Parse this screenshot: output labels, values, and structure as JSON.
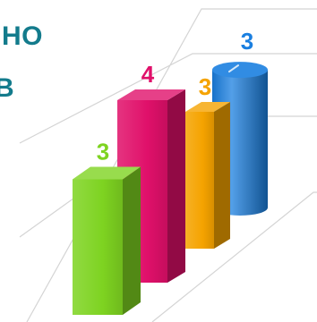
{
  "chart_data": {
    "type": "bar",
    "style": "3d-perspective",
    "categories": [
      "",
      "",
      "",
      ""
    ],
    "values": [
      3,
      4,
      3,
      3
    ],
    "data_labels": [
      "3",
      "4",
      "3",
      "3"
    ],
    "colors": [
      "#7ed321",
      "#e0106a",
      "#f5a300",
      "#1a7fe0"
    ],
    "title": "",
    "xlabel": "",
    "ylabel": "",
    "grid": true,
    "legend": "none"
  },
  "clipped_text": [
    "НО",
    "В"
  ]
}
